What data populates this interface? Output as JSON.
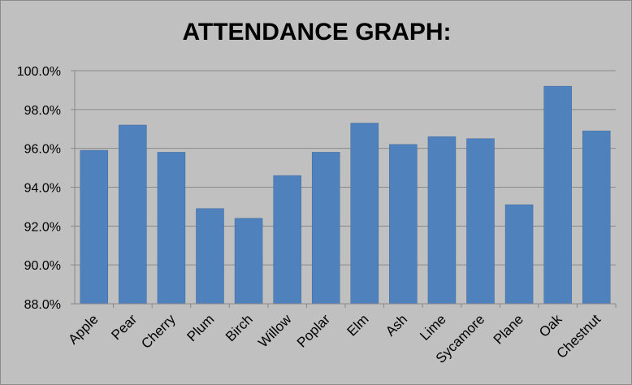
{
  "chart_data": {
    "type": "bar",
    "title": "ATTENDANCE GRAPH:",
    "xlabel": "",
    "ylabel": "",
    "categories": [
      "Apple",
      "Pear",
      "Cherry",
      "Plum",
      "Birch",
      "Willow",
      "Poplar",
      "Elm",
      "Ash",
      "Lime",
      "Sycamore",
      "Plane",
      "Oak",
      "Chestnut"
    ],
    "values": [
      95.9,
      97.2,
      95.8,
      92.9,
      92.4,
      94.6,
      95.8,
      97.3,
      96.2,
      96.6,
      96.5,
      93.1,
      99.2,
      96.9
    ],
    "ylim": [
      88,
      100
    ],
    "yticks": [
      "88.0%",
      "90.0%",
      "92.0%",
      "94.0%",
      "96.0%",
      "98.0%",
      "100.0%"
    ],
    "ytick_values": [
      88,
      90,
      92,
      94,
      96,
      98,
      100
    ],
    "grid": true,
    "legend": "none",
    "colors": {
      "bar": "#4f81bd",
      "bar_edge": "#3f6a9e",
      "background": "#c0c0c0",
      "gridline": "#8a8a8a",
      "axis": "#888888"
    }
  }
}
